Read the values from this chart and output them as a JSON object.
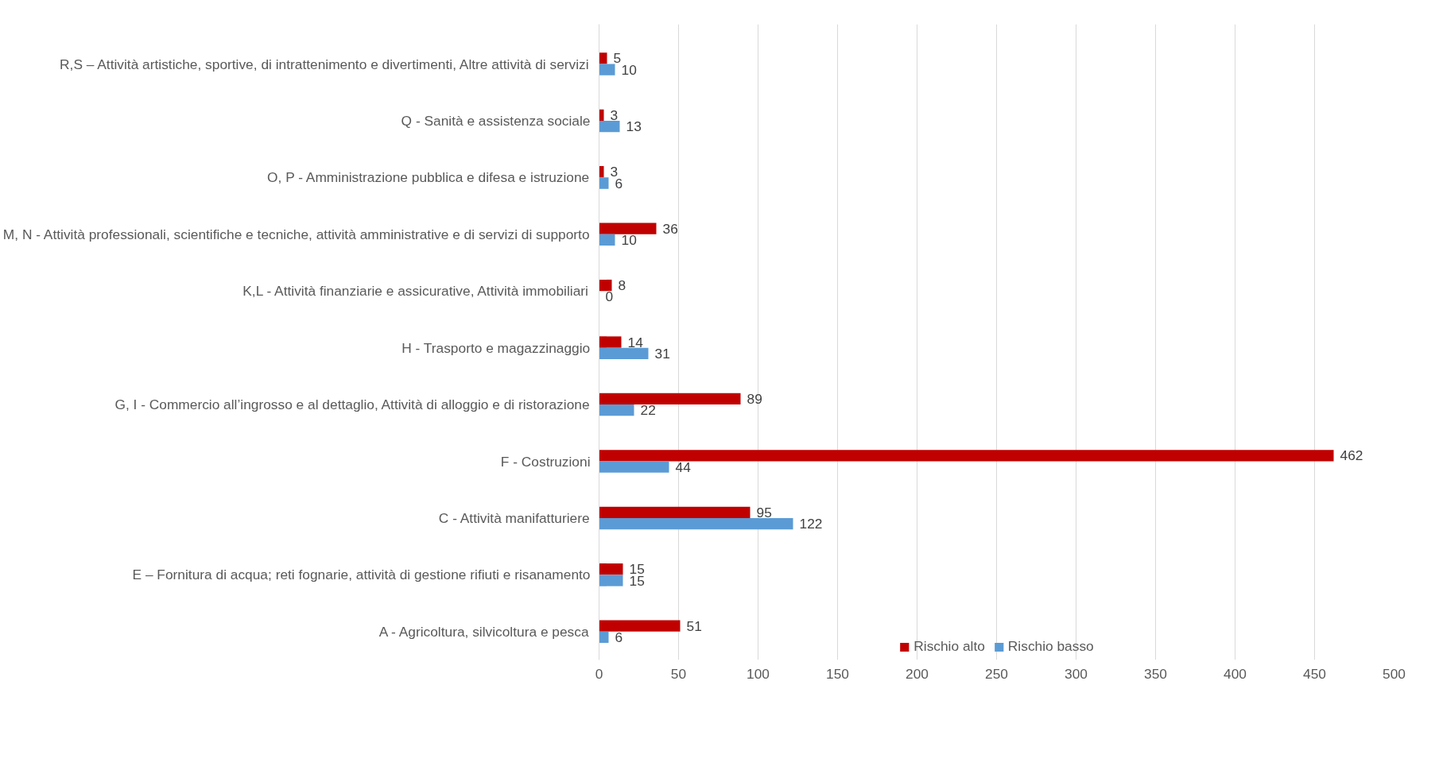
{
  "chart_data": {
    "type": "bar",
    "orientation": "horizontal",
    "categories": [
      "R,S – Attività artistiche, sportive, di intrattenimento e divertimenti, Altre attività di servizi",
      "Q - Sanità e assistenza sociale",
      "O, P - Amministrazione pubblica e difesa e istruzione",
      "M, N - Attività professionali, scientifiche e tecniche, attività amministrative e di servizi di supporto",
      "K,L - Attività finanziarie e assicurative, Attività immobiliari",
      "H - Trasporto e magazzinaggio",
      "G, I - Commercio all’ingrosso e al dettaglio, Attività di alloggio e di ristorazione",
      "F - Costruzioni",
      "C - Attività manifatturiere",
      "E – Fornitura di acqua; reti fognarie, attività di gestione rifiuti e risanamento",
      "A - Agricoltura, silvicoltura e pesca"
    ],
    "series": [
      {
        "name": "Rischio alto",
        "color": "#c00000",
        "values": [
          5,
          3,
          3,
          36,
          8,
          14,
          89,
          462,
          95,
          15,
          51
        ]
      },
      {
        "name": "Rischio basso",
        "color": "#5b9bd5",
        "values": [
          10,
          13,
          6,
          10,
          0,
          31,
          22,
          44,
          122,
          15,
          6
        ]
      }
    ],
    "xlim": [
      0,
      500
    ],
    "xticks": [
      0,
      50,
      100,
      150,
      200,
      250,
      300,
      350,
      400,
      450,
      500
    ],
    "grid": "x",
    "legend": "bottom",
    "data_labels": true
  }
}
